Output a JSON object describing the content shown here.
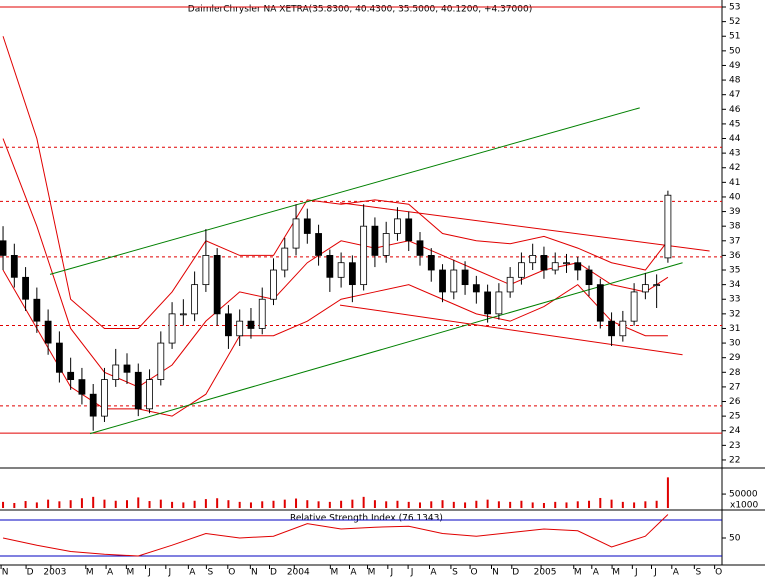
{
  "chart_data": [
    {
      "type": "candlestick",
      "title": "DaimlerChrysler NA  XETRA(35.8300, 40.4300, 35.5000, 40.1200, +4.37000)",
      "open": [
        37,
        36,
        34.5,
        33,
        31.5,
        30,
        28,
        27.5,
        26.5,
        25,
        27.5,
        28.5,
        28,
        25.5,
        27.5,
        30,
        32,
        32,
        34,
        36,
        32,
        30.5,
        31.5,
        31,
        33,
        35,
        36.5,
        38.5,
        37.5,
        36,
        34.5,
        35.5,
        34,
        38,
        36,
        37.5,
        38.5,
        37,
        36,
        35,
        33.5,
        35,
        34,
        33.5,
        32,
        33.5,
        34.5,
        35.5,
        36,
        35,
        35.5,
        35.5,
        35,
        34,
        31.5,
        30.5,
        31.5,
        33.5,
        34,
        35.83
      ],
      "high": [
        38,
        36.8,
        35.2,
        33.8,
        32.3,
        30.8,
        29,
        28.3,
        27.2,
        28.3,
        29.6,
        29.3,
        28.6,
        28.2,
        30.8,
        32.8,
        33,
        34.9,
        37.8,
        36.5,
        32.6,
        32.3,
        32.4,
        33.8,
        35.8,
        37.2,
        39.5,
        39.2,
        38.1,
        36.4,
        36.2,
        36,
        39.5,
        38.6,
        38.3,
        39.3,
        39,
        37.6,
        36.5,
        35.4,
        35.7,
        35.6,
        34.6,
        34,
        34.1,
        35.2,
        36.2,
        36.8,
        36.6,
        36.2,
        36.1,
        35.9,
        35.3,
        34.4,
        32.1,
        32.2,
        34.1,
        34.8,
        34.7,
        40.43
      ],
      "low": [
        35,
        33.8,
        32.2,
        30.7,
        29.2,
        27.3,
        26.8,
        25.8,
        24,
        24.6,
        27,
        27.2,
        25,
        25.2,
        27.1,
        29.6,
        31.2,
        31.5,
        33.5,
        31.2,
        29.6,
        29.8,
        30.3,
        30.6,
        32.6,
        34.5,
        36,
        36.8,
        35.3,
        33.5,
        33.8,
        32.8,
        33.6,
        35.2,
        35.5,
        37,
        36.3,
        35.3,
        34.2,
        32.8,
        33,
        33.3,
        32.7,
        31.4,
        31.6,
        33.1,
        34,
        35,
        34.4,
        34.7,
        34.8,
        34.3,
        33.2,
        31,
        29.8,
        30.1,
        31.2,
        33,
        32.4,
        35.5
      ],
      "close": [
        36,
        34.5,
        33,
        31.5,
        30,
        28,
        27.5,
        26.5,
        25,
        27.5,
        28.5,
        28,
        25.5,
        27.5,
        30,
        32,
        32,
        34,
        36,
        32,
        30.5,
        31.5,
        31,
        33,
        35,
        36.5,
        38.5,
        37.5,
        36,
        34.5,
        35.5,
        34,
        38,
        36,
        37.5,
        38.5,
        37,
        36,
        35,
        33.5,
        35,
        34,
        33.5,
        32,
        33.5,
        34.5,
        35.5,
        36,
        35,
        35.5,
        35.5,
        35,
        34,
        31.5,
        30.5,
        31.5,
        33.5,
        34,
        34,
        40.12
      ],
      "up_color": "#ffffff",
      "down_color": "#000000",
      "xlim": [
        -0.27,
        63.8
      ],
      "ylim": [
        21.45,
        53.48
      ],
      "yticks": [
        22,
        23,
        24,
        25,
        26,
        27,
        28,
        29,
        30,
        31,
        32,
        33,
        34,
        35,
        36,
        37,
        38,
        39,
        40,
        41,
        42,
        43,
        44,
        45,
        46,
        47,
        48,
        49,
        50,
        51,
        52,
        53
      ],
      "xticks": [
        {
          "value": 0.18,
          "label": "N"
        },
        {
          "value": 2.4,
          "label": "D"
        },
        {
          "value": 4.6,
          "label": "2003"
        },
        {
          "value": 7.7,
          "label": "M"
        },
        {
          "value": 9.5,
          "label": "A"
        },
        {
          "value": 11.3,
          "label": "M"
        },
        {
          "value": 13.0,
          "label": "J"
        },
        {
          "value": 14.8,
          "label": "J"
        },
        {
          "value": 16.8,
          "label": "A"
        },
        {
          "value": 18.4,
          "label": "S"
        },
        {
          "value": 20.3,
          "label": "O"
        },
        {
          "value": 22.3,
          "label": "N"
        },
        {
          "value": 24.0,
          "label": "D"
        },
        {
          "value": 26.2,
          "label": "2004"
        },
        {
          "value": 29.4,
          "label": "M"
        },
        {
          "value": 31.1,
          "label": "A"
        },
        {
          "value": 32.7,
          "label": "M"
        },
        {
          "value": 34.5,
          "label": "J"
        },
        {
          "value": 36.3,
          "label": "J"
        },
        {
          "value": 38.2,
          "label": "A"
        },
        {
          "value": 40.1,
          "label": "S"
        },
        {
          "value": 41.8,
          "label": "O"
        },
        {
          "value": 43.7,
          "label": "N"
        },
        {
          "value": 45.5,
          "label": "D"
        },
        {
          "value": 48.1,
          "label": "2005"
        },
        {
          "value": 51.0,
          "label": "M"
        },
        {
          "value": 52.6,
          "label": "A"
        },
        {
          "value": 54.4,
          "label": "M"
        },
        {
          "value": 56.2,
          "label": "J"
        },
        {
          "value": 57.9,
          "label": "J"
        },
        {
          "value": 59.7,
          "label": "A"
        },
        {
          "value": 61.7,
          "label": "S"
        },
        {
          "value": 63.5,
          "label": "O"
        }
      ],
      "overlays": [
        {
          "color": "#e00000",
          "x": [
            0,
            3,
            6,
            9,
            12,
            15,
            18,
            21,
            24,
            27,
            30,
            33,
            36,
            39,
            42,
            45,
            48,
            51,
            54,
            57,
            59
          ],
          "values": [
            51,
            44,
            33,
            31,
            31,
            33.5,
            37,
            36,
            36,
            39.8,
            39.5,
            39.8,
            39.5,
            37.5,
            37,
            36.8,
            37.3,
            36.5,
            35.5,
            35,
            37
          ]
        },
        {
          "color": "#e00000",
          "x": [
            0,
            3,
            6,
            9,
            12,
            15,
            18,
            21,
            24,
            27,
            30,
            33,
            36,
            39,
            42,
            45,
            48,
            51,
            54,
            57,
            59
          ],
          "values": [
            44,
            38,
            31,
            28,
            27,
            28.5,
            31.5,
            33.5,
            33,
            35.5,
            37,
            36.5,
            37,
            36,
            35,
            34,
            35,
            35.5,
            34,
            33.5,
            34.5
          ]
        },
        {
          "color": "#e00000",
          "x": [
            0,
            3,
            6,
            9,
            12,
            15,
            18,
            21,
            24,
            27,
            30,
            33,
            36,
            39,
            42,
            45,
            48,
            51,
            54,
            57,
            59
          ],
          "values": [
            35,
            31,
            27,
            25.5,
            25.5,
            25,
            26.5,
            30.5,
            30.5,
            31.5,
            33,
            33.5,
            34,
            33,
            32,
            31.5,
            32.5,
            34,
            31.5,
            30.5,
            30.5
          ]
        }
      ],
      "trendlines": [
        {
          "color": "#008000",
          "x": [
            4.17,
            56.5
          ],
          "values": [
            34.7,
            46.1
          ]
        },
        {
          "color": "#008000",
          "x": [
            7.72,
            60.3
          ],
          "values": [
            23.8,
            35.5
          ]
        },
        {
          "color": "#e00000",
          "x": [
            29.9,
            62.7
          ],
          "values": [
            39.6,
            36.3
          ]
        },
        {
          "color": "#e00000",
          "x": [
            29.9,
            60.3
          ],
          "values": [
            32.6,
            29.2
          ]
        }
      ],
      "level_color": "#e00000",
      "levels": [
        {
          "value": 53,
          "dashed": false
        },
        {
          "value": 43.4,
          "dashed": true
        },
        {
          "value": 39.7,
          "dashed": true
        },
        {
          "value": 35.9,
          "dashed": true
        },
        {
          "value": 31.2,
          "dashed": true
        },
        {
          "value": 25.7,
          "dashed": true
        },
        {
          "value": 23.84,
          "dashed": false
        }
      ]
    },
    {
      "type": "bar",
      "color": "#e00000",
      "unit_label": "x1000",
      "values": [
        22000,
        18000,
        25000,
        20000,
        30000,
        24000,
        28000,
        35000,
        40000,
        30000,
        26000,
        28000,
        38000,
        25000,
        30000,
        22000,
        20000,
        26000,
        32000,
        35000,
        28000,
        22000,
        20000,
        24000,
        26000,
        30000,
        34000,
        28000,
        24000,
        22000,
        26000,
        30000,
        40000,
        28000,
        24000,
        26000,
        22000,
        20000,
        24000,
        28000,
        22000,
        20000,
        26000,
        30000,
        24000,
        22000,
        26000,
        20000,
        18000,
        22000,
        20000,
        24000,
        26000,
        36000,
        30000,
        22000,
        20000,
        24000,
        26000,
        110000
      ],
      "xlim": [
        -0.27,
        63.8
      ],
      "ylim": [
        0,
        140000
      ],
      "yticks": [
        50000
      ]
    },
    {
      "type": "line",
      "title": "Relative Strength Index (76.1343)",
      "color": "#e00000",
      "x": [
        0,
        3,
        6,
        9,
        12,
        15,
        18,
        21,
        24,
        27,
        30,
        33,
        36,
        39,
        42,
        45,
        48,
        51,
        54,
        57,
        59
      ],
      "values": [
        50,
        42,
        35,
        32,
        30,
        42,
        55,
        50,
        52,
        66,
        60,
        62,
        63,
        55,
        52,
        56,
        60,
        58,
        40,
        52,
        76.13
      ],
      "xlim": [
        -0.27,
        63.8
      ],
      "ylim": [
        20,
        80
      ],
      "yticks": [
        50
      ],
      "level_color": "#0000c0",
      "levels": [
        70,
        30
      ]
    }
  ]
}
